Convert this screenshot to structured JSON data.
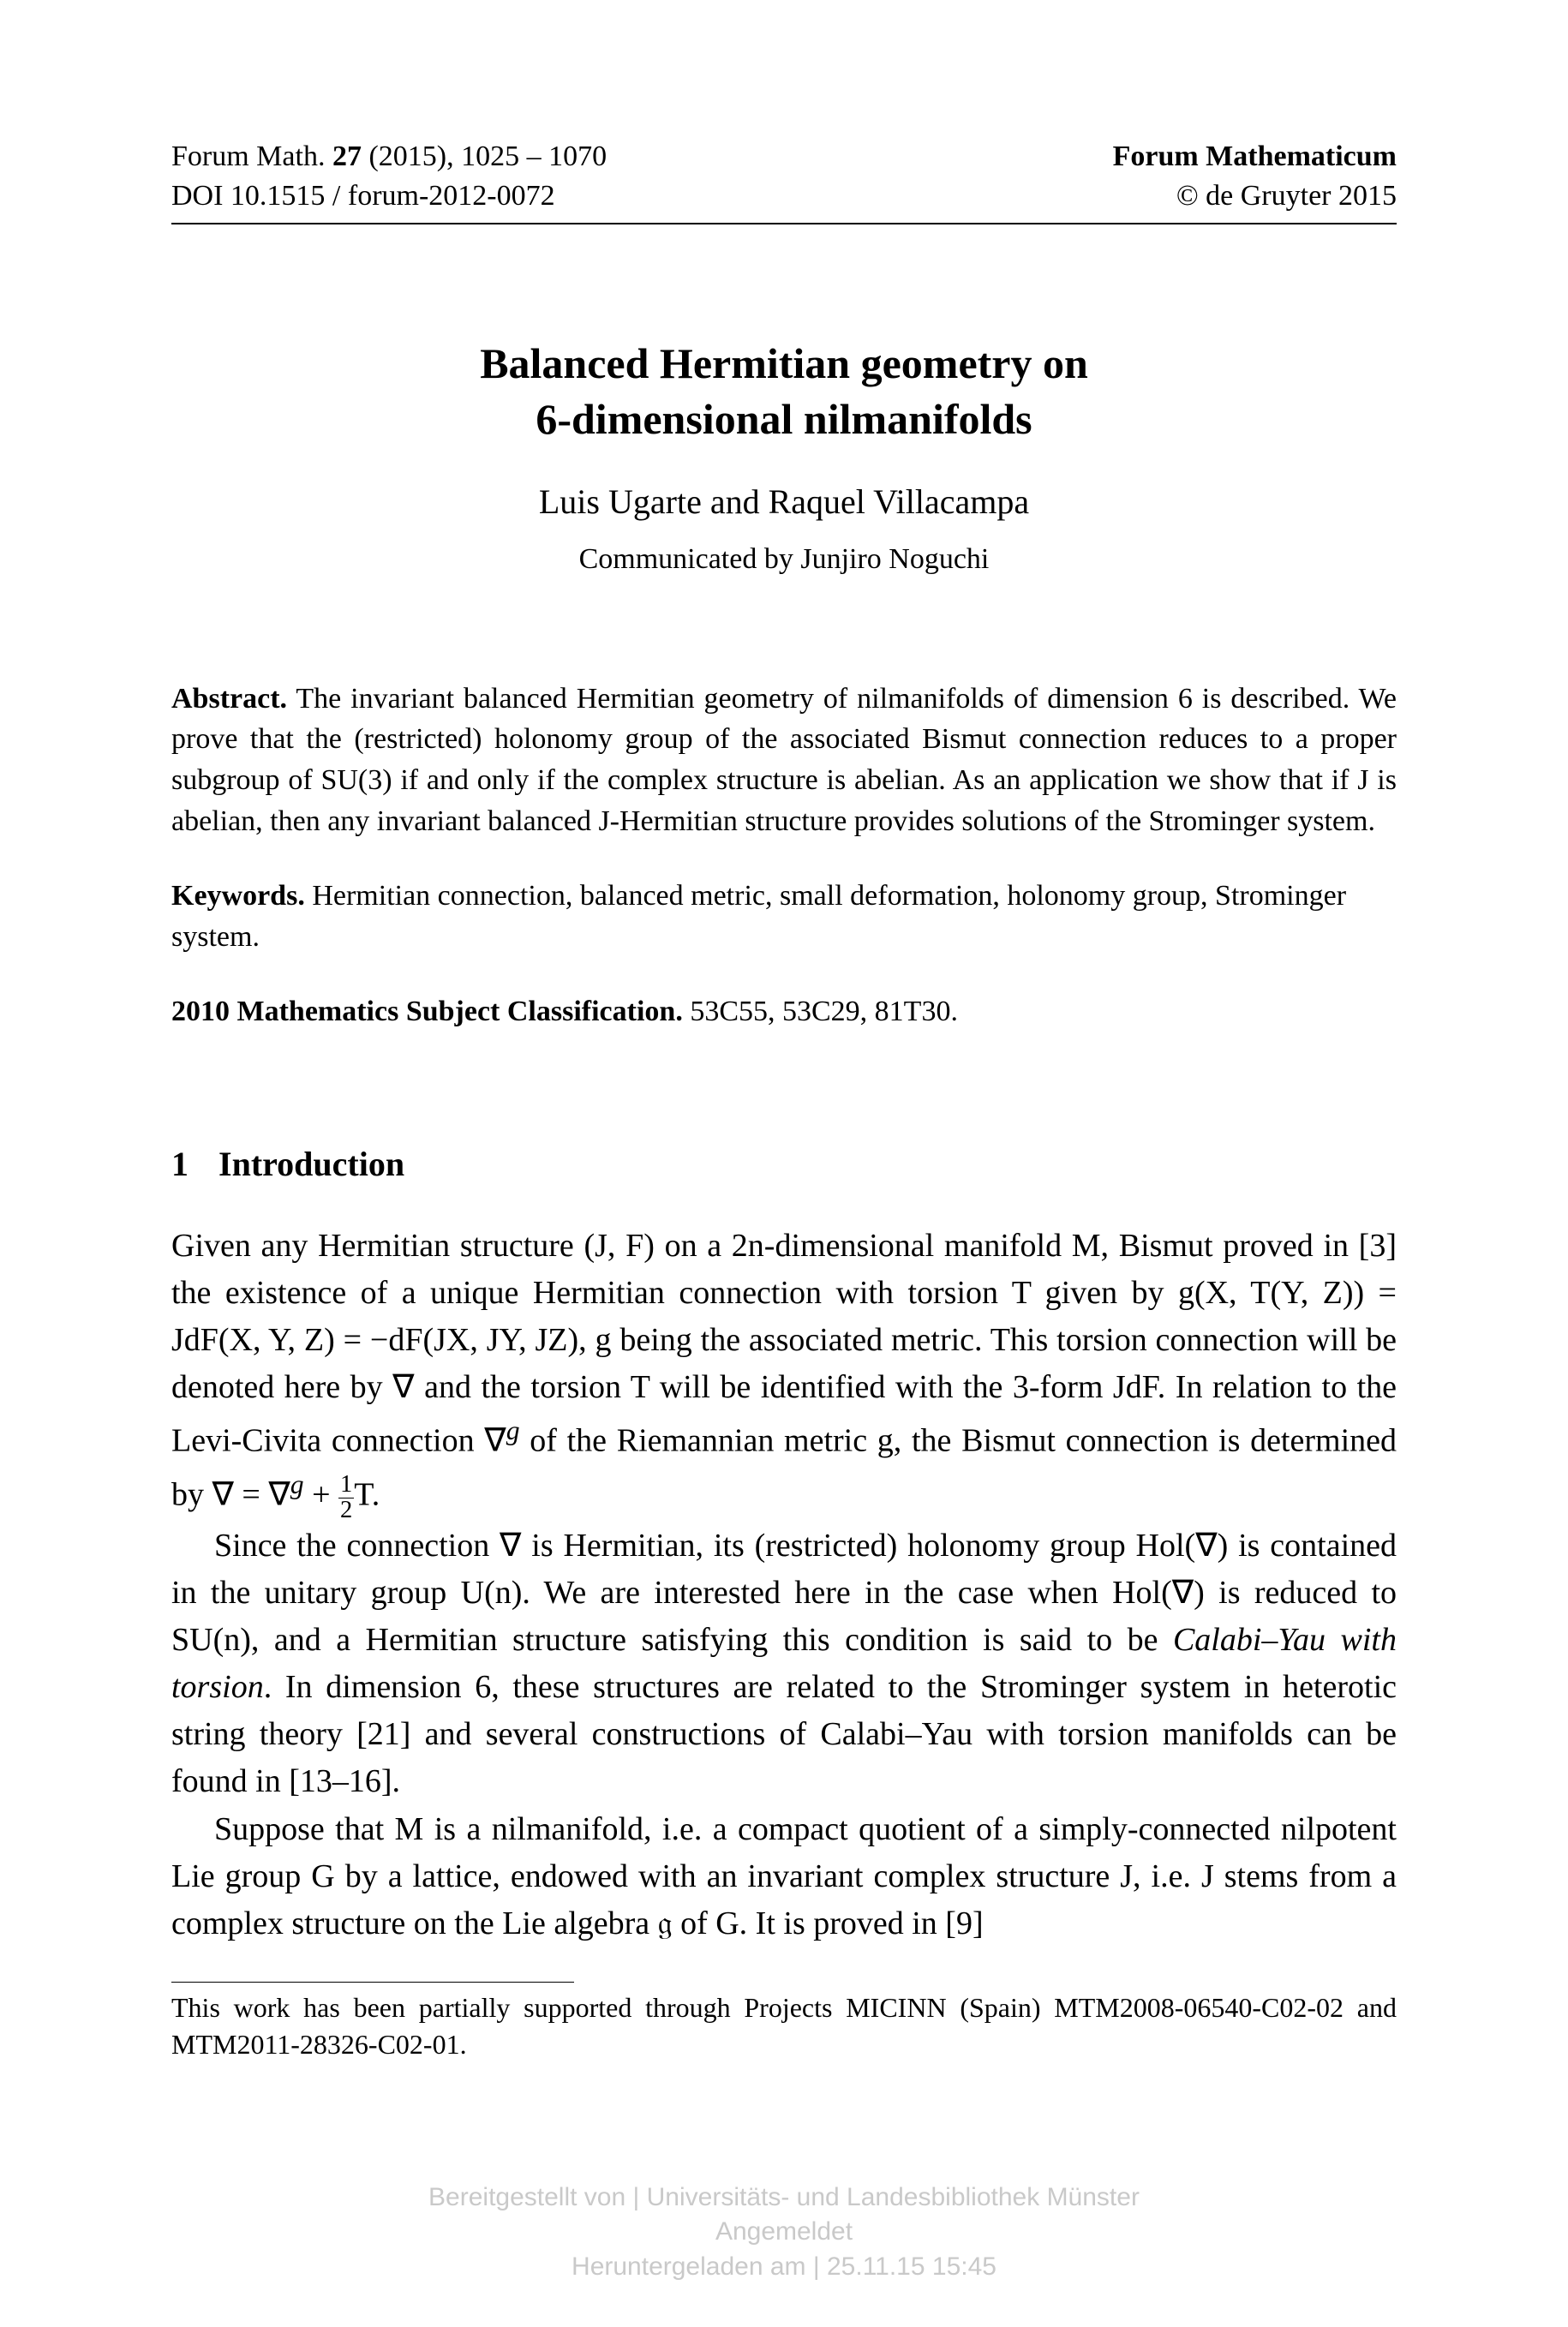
{
  "header": {
    "journal_line": "Forum Math. ",
    "volume": "27",
    "year_pages": " (2015), 1025 – 1070",
    "doi": "DOI 10.1515 / forum-2012-0072",
    "journal_name": "Forum Mathematicum",
    "copyright": "© de Gruyter 2015"
  },
  "title_line1": "Balanced Hermitian geometry on",
  "title_line2": "6-dimensional nilmanifolds",
  "authors": "Luis Ugarte and Raquel Villacampa",
  "communicated": "Communicated by Junjiro Noguchi",
  "abstract": {
    "label": "Abstract.",
    "text": " The invariant balanced Hermitian geometry of nilmanifolds of dimension 6 is described. We prove that the (restricted) holonomy group of the associated Bismut connection reduces to a proper subgroup of SU(3) if and only if the complex structure is abelian. As an application we show that if J is abelian, then any invariant balanced J-Hermitian structure provides solutions of the Strominger system."
  },
  "keywords": {
    "label": "Keywords.",
    "text": " Hermitian connection, balanced metric, small deformation, holonomy group, Strominger system."
  },
  "msc": {
    "label": "2010 Mathematics Subject Classification.",
    "text": " 53C55, 53C29, 81T30."
  },
  "section": {
    "number": "1",
    "title": "Introduction"
  },
  "paragraphs": {
    "p1_a": "Given any Hermitian structure (J, F) on a 2n-dimensional manifold M, Bismut proved in [3] the existence of a unique Hermitian connection with torsion T given by g(X, T(Y, Z)) = JdF(X, Y, Z) = −dF(JX, JY, JZ), g being the associated metric. This torsion connection will be denoted here by ∇ and the torsion T will be identified with the 3-form JdF. In relation to the Levi-Civita connection ∇",
    "p1_sup_g1": "g",
    "p1_b": " of the Riemannian metric g, the Bismut connection is determined by ∇ = ∇",
    "p1_sup_g2": "g",
    "p1_c": " + ",
    "p1_frac_num": "1",
    "p1_frac_den": "2",
    "p1_d": "T.",
    "p2": "Since the connection ∇ is Hermitian, its (restricted) holonomy group Hol(∇) is contained in the unitary group U(n). We are interested here in the case when Hol(∇) is reduced to SU(n), and a Hermitian structure satisfying this condition is said to be ",
    "p2_italic": "Calabi–Yau with torsion",
    "p2_b": ". In dimension 6, these structures are related to the Strominger system in heterotic string theory [21] and several constructions of Calabi–Yau with torsion manifolds can be found in [13–16].",
    "p3": "Suppose that M is a nilmanifold, i.e. a compact quotient of a simply-connected nilpotent Lie group G by a lattice, endowed with an invariant complex structure J, i.e. J stems from a complex structure on the Lie algebra 𝔤 of G. It is proved in [9]"
  },
  "footnote": "This work has been partially supported through Projects MICINN (Spain) MTM2008-06540-C02-02 and MTM2011-28326-C02-01.",
  "watermark": {
    "line1": "Bereitgestellt von | Universitäts- und Landesbibliothek Münster",
    "line2": "Angemeldet",
    "line3": "Heruntergeladen am | 25.11.15 15:45"
  }
}
